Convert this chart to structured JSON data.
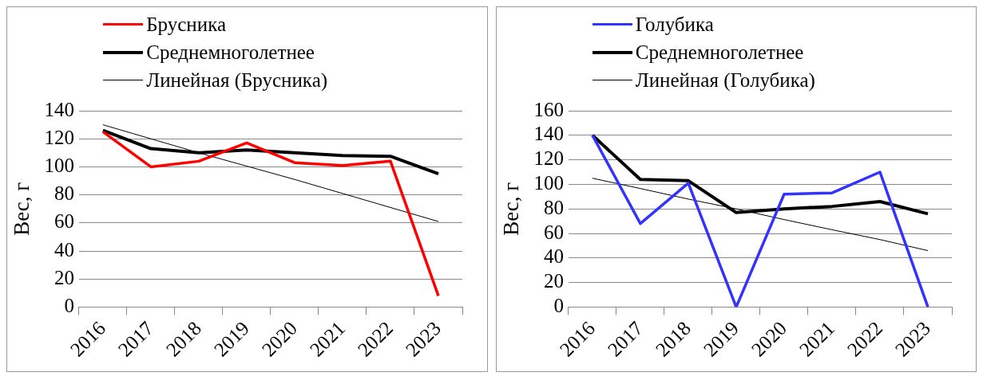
{
  "chart_data": [
    {
      "type": "line",
      "ylabel": "Вес, г",
      "categories": [
        "2016",
        "2017",
        "2018",
        "2019",
        "2020",
        "2021",
        "2022",
        "2023"
      ],
      "ylim": [
        0,
        140
      ],
      "yticks": [
        0,
        20,
        40,
        60,
        80,
        100,
        120,
        140
      ],
      "grid": "y",
      "legend": "top",
      "marker": "none",
      "line_style": "solid",
      "series": [
        {
          "name": "Брусника",
          "color": "#ff0000",
          "values": [
            125,
            100,
            104,
            117,
            103,
            101,
            104,
            8
          ]
        },
        {
          "name": "Среднемноголетнее",
          "color": "#000000",
          "values": [
            126,
            113,
            110,
            112,
            110,
            108,
            107.5,
            95
          ]
        },
        {
          "name": "Линейная (Брусника)",
          "type": "line",
          "color": "#000000",
          "values": [
            130,
            120,
            110,
            100.5,
            91,
            81,
            71,
            61
          ]
        }
      ]
    },
    {
      "type": "line",
      "ylabel": "Вес, г",
      "categories": [
        "2016",
        "2017",
        "2018",
        "2019",
        "2020",
        "2021",
        "2022",
        "2023"
      ],
      "ylim": [
        0,
        160
      ],
      "yticks": [
        0,
        20,
        40,
        60,
        80,
        100,
        120,
        140,
        160
      ],
      "grid": "y",
      "legend": "top",
      "marker": "none",
      "line_style": "solid",
      "series": [
        {
          "name": "Голубика",
          "color": "#3333ff",
          "values": [
            140,
            68,
            101,
            0,
            92,
            93,
            110,
            0
          ]
        },
        {
          "name": "Среднемноголетнее",
          "color": "#000000",
          "values": [
            140,
            104,
            103,
            77,
            80,
            82,
            86,
            76
          ]
        },
        {
          "name": "Линейная (Голубика)",
          "type": "line",
          "color": "#000000",
          "values": [
            105,
            96.6,
            88,
            80,
            71.3,
            63,
            55,
            46
          ]
        }
      ]
    }
  ]
}
